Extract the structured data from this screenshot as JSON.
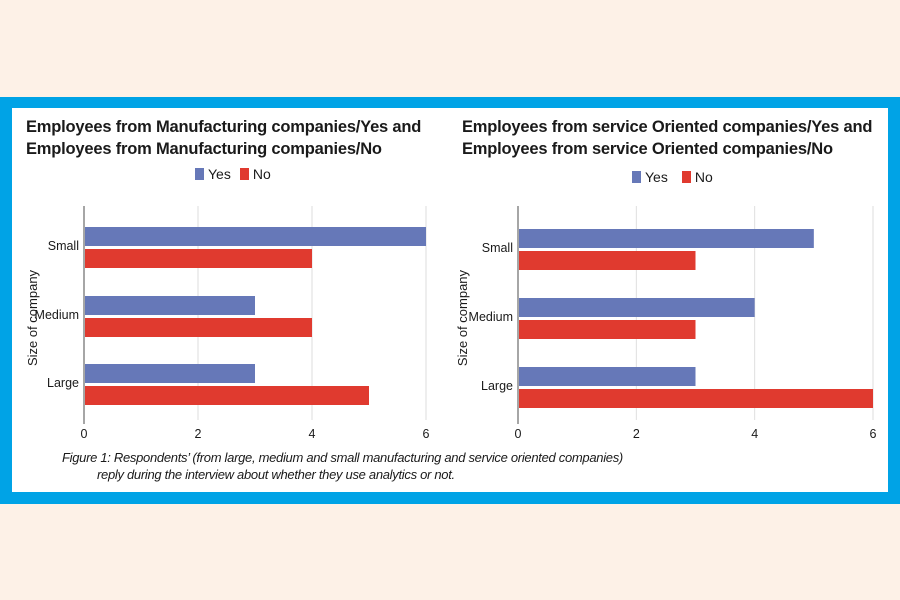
{
  "colors": {
    "page_background": "#fdf1e7",
    "frame": "#00a3e6",
    "yes": "#6678b8",
    "no": "#e03a2f",
    "grid": "#dedede",
    "axis": "#888888"
  },
  "caption": {
    "line1": "Figure 1: Respondents’ (from large, medium and small manufacturing and service oriented companies)",
    "line2": "reply during the interview about whether they use analytics or not."
  },
  "chart_data": [
    {
      "type": "bar",
      "orientation": "horizontal",
      "title_line1": "Employees from Manufacturing companies/Yes and",
      "title_line2": "Employees from Manufacturing companies/No",
      "ylabel": "Size of company",
      "xlabel": "",
      "categories": [
        "Small",
        "Medium",
        "Large"
      ],
      "series": [
        {
          "name": "Yes",
          "values": [
            6,
            3,
            3
          ]
        },
        {
          "name": "No",
          "values": [
            4,
            4,
            5
          ]
        }
      ],
      "xlim": [
        0,
        6
      ],
      "xticks": [
        "0",
        "2",
        "4",
        "6"
      ],
      "grid": true,
      "legend": "top-center"
    },
    {
      "type": "bar",
      "orientation": "horizontal",
      "title_line1": "Employees from service Oriented companies/Yes and",
      "title_line2": "Employees from service Oriented companies/No",
      "ylabel": "Size of company",
      "xlabel": "",
      "categories": [
        "Small",
        "Medium",
        "Large"
      ],
      "series": [
        {
          "name": "Yes",
          "values": [
            5,
            4,
            3
          ]
        },
        {
          "name": "No",
          "values": [
            3,
            3,
            6
          ]
        }
      ],
      "xlim": [
        0,
        6
      ],
      "xticks": [
        "0",
        "2",
        "4",
        "6"
      ],
      "grid": true,
      "legend": "top-center"
    }
  ]
}
